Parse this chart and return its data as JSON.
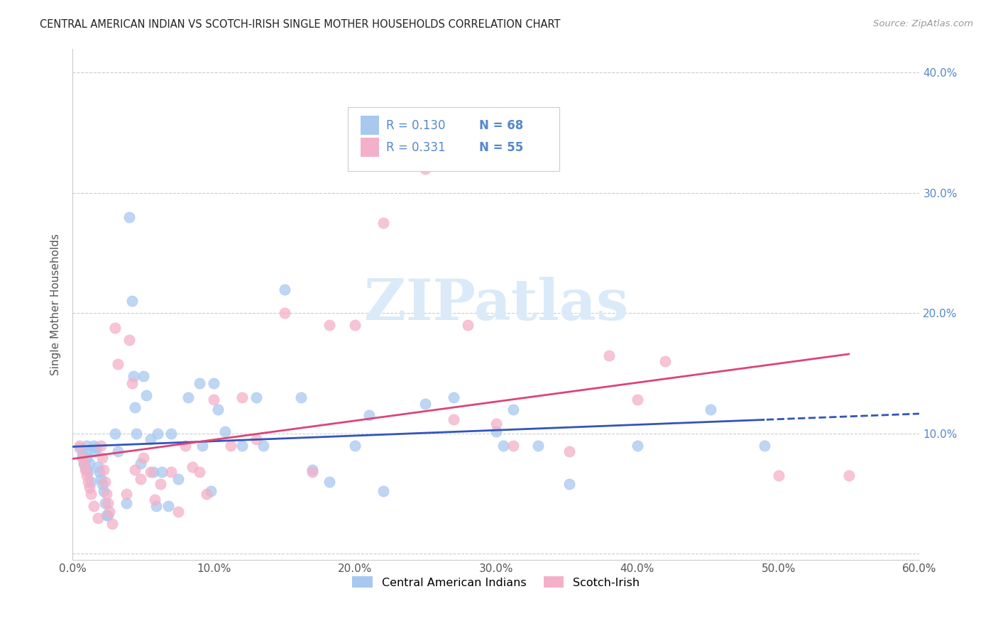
{
  "title": "CENTRAL AMERICAN INDIAN VS SCOTCH-IRISH SINGLE MOTHER HOUSEHOLDS CORRELATION CHART",
  "source": "Source: ZipAtlas.com",
  "ylabel": "Single Mother Households",
  "xlim": [
    0.0,
    0.6
  ],
  "ylim": [
    -0.005,
    0.42
  ],
  "xticks": [
    0.0,
    0.1,
    0.2,
    0.3,
    0.4,
    0.5,
    0.6
  ],
  "yticks": [
    0.0,
    0.1,
    0.2,
    0.3,
    0.4
  ],
  "legend1_label": "Central American Indians",
  "legend2_label": "Scotch-Irish",
  "R1": 0.13,
  "N1": 68,
  "R2": 0.331,
  "N2": 55,
  "blue_color": "#a8c8f0",
  "pink_color": "#f4b0c8",
  "blue_line_color": "#3355bb",
  "pink_line_color": "#dd4477",
  "right_tick_color": "#5588cc",
  "watermark_color": "#daeaf8",
  "blue_scatter_x": [
    0.005,
    0.007,
    0.008,
    0.009,
    0.01,
    0.01,
    0.01,
    0.01,
    0.011,
    0.012,
    0.013,
    0.015,
    0.016,
    0.017,
    0.018,
    0.019,
    0.02,
    0.021,
    0.022,
    0.023,
    0.024,
    0.025,
    0.03,
    0.032,
    0.038,
    0.04,
    0.042,
    0.043,
    0.044,
    0.045,
    0.048,
    0.05,
    0.052,
    0.055,
    0.057,
    0.059,
    0.06,
    0.063,
    0.068,
    0.07,
    0.075,
    0.082,
    0.09,
    0.092,
    0.098,
    0.1,
    0.103,
    0.108,
    0.12,
    0.13,
    0.135,
    0.15,
    0.162,
    0.17,
    0.182,
    0.2,
    0.21,
    0.22,
    0.25,
    0.27,
    0.3,
    0.305,
    0.312,
    0.33,
    0.352,
    0.4,
    0.452,
    0.49
  ],
  "blue_scatter_y": [
    0.088,
    0.082,
    0.075,
    0.072,
    0.09,
    0.085,
    0.08,
    0.07,
    0.068,
    0.075,
    0.06,
    0.09,
    0.085,
    0.088,
    0.072,
    0.068,
    0.062,
    0.058,
    0.052,
    0.042,
    0.032,
    0.032,
    0.1,
    0.085,
    0.042,
    0.28,
    0.21,
    0.148,
    0.122,
    0.1,
    0.075,
    0.148,
    0.132,
    0.095,
    0.068,
    0.04,
    0.1,
    0.068,
    0.04,
    0.1,
    0.062,
    0.13,
    0.142,
    0.09,
    0.052,
    0.142,
    0.12,
    0.102,
    0.09,
    0.13,
    0.09,
    0.22,
    0.13,
    0.07,
    0.06,
    0.09,
    0.115,
    0.052,
    0.125,
    0.13,
    0.102,
    0.09,
    0.12,
    0.09,
    0.058,
    0.09,
    0.12,
    0.09
  ],
  "pink_scatter_x": [
    0.005,
    0.007,
    0.008,
    0.009,
    0.01,
    0.011,
    0.012,
    0.013,
    0.015,
    0.018,
    0.02,
    0.021,
    0.022,
    0.023,
    0.024,
    0.025,
    0.026,
    0.028,
    0.03,
    0.032,
    0.038,
    0.04,
    0.042,
    0.044,
    0.048,
    0.05,
    0.055,
    0.058,
    0.062,
    0.07,
    0.075,
    0.08,
    0.085,
    0.09,
    0.095,
    0.1,
    0.112,
    0.12,
    0.13,
    0.15,
    0.17,
    0.182,
    0.2,
    0.22,
    0.25,
    0.27,
    0.28,
    0.3,
    0.312,
    0.352,
    0.38,
    0.4,
    0.42,
    0.5,
    0.55
  ],
  "pink_scatter_y": [
    0.09,
    0.08,
    0.075,
    0.07,
    0.065,
    0.06,
    0.055,
    0.05,
    0.04,
    0.03,
    0.09,
    0.08,
    0.07,
    0.06,
    0.05,
    0.042,
    0.035,
    0.025,
    0.188,
    0.158,
    0.05,
    0.178,
    0.142,
    0.07,
    0.062,
    0.08,
    0.068,
    0.045,
    0.058,
    0.068,
    0.035,
    0.09,
    0.072,
    0.068,
    0.05,
    0.128,
    0.09,
    0.13,
    0.095,
    0.2,
    0.068,
    0.19,
    0.19,
    0.275,
    0.32,
    0.112,
    0.19,
    0.108,
    0.09,
    0.085,
    0.165,
    0.128,
    0.16,
    0.065,
    0.065
  ]
}
